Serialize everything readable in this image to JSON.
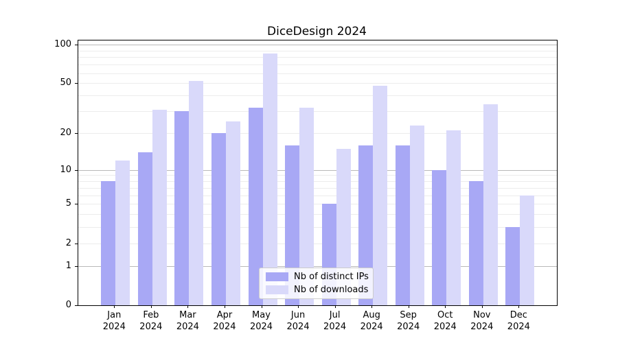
{
  "title": "DiceDesign 2024",
  "y_axis": {
    "tick_labels": [
      "100",
      "50",
      "20",
      "10",
      "5",
      "2",
      "1",
      "0"
    ]
  },
  "x_axis": {
    "months": [
      {
        "month": "Jan",
        "year": "2024"
      },
      {
        "month": "Feb",
        "year": "2024"
      },
      {
        "month": "Mar",
        "year": "2024"
      },
      {
        "month": "Apr",
        "year": "2024"
      },
      {
        "month": "May",
        "year": "2024"
      },
      {
        "month": "Jun",
        "year": "2024"
      },
      {
        "month": "Jul",
        "year": "2024"
      },
      {
        "month": "Aug",
        "year": "2024"
      },
      {
        "month": "Sep",
        "year": "2024"
      },
      {
        "month": "Oct",
        "year": "2024"
      },
      {
        "month": "Nov",
        "year": "2024"
      },
      {
        "month": "Dec",
        "year": "2024"
      }
    ]
  },
  "legend": {
    "items": [
      {
        "label": "Nb of distinct IPs",
        "color": "#a8a8f5"
      },
      {
        "label": "Nb of downloads",
        "color": "#d9d9fa"
      }
    ]
  },
  "chart_data": {
    "type": "bar",
    "title": "DiceDesign 2024",
    "categories": [
      "Jan 2024",
      "Feb 2024",
      "Mar 2024",
      "Apr 2024",
      "May 2024",
      "Jun 2024",
      "Jul 2024",
      "Aug 2024",
      "Sep 2024",
      "Oct 2024",
      "Nov 2024",
      "Dec 2024"
    ],
    "series": [
      {
        "name": "Nb of distinct IPs",
        "color": "#a8a8f5",
        "values": [
          8,
          14,
          30,
          20,
          32,
          16,
          5,
          16,
          16,
          10,
          8,
          3
        ]
      },
      {
        "name": "Nb of downloads",
        "color": "#d9d9fa",
        "values": [
          12,
          31,
          52,
          25,
          85,
          32,
          15,
          48,
          23,
          21,
          34,
          6
        ]
      }
    ],
    "xlabel": "",
    "ylabel": "",
    "yscale": "log1p",
    "y_ticks": [
      100,
      50,
      20,
      10,
      5,
      2,
      1,
      0
    ],
    "ylim": [
      0,
      107
    ],
    "grid": true,
    "legend_position": "lower center"
  }
}
